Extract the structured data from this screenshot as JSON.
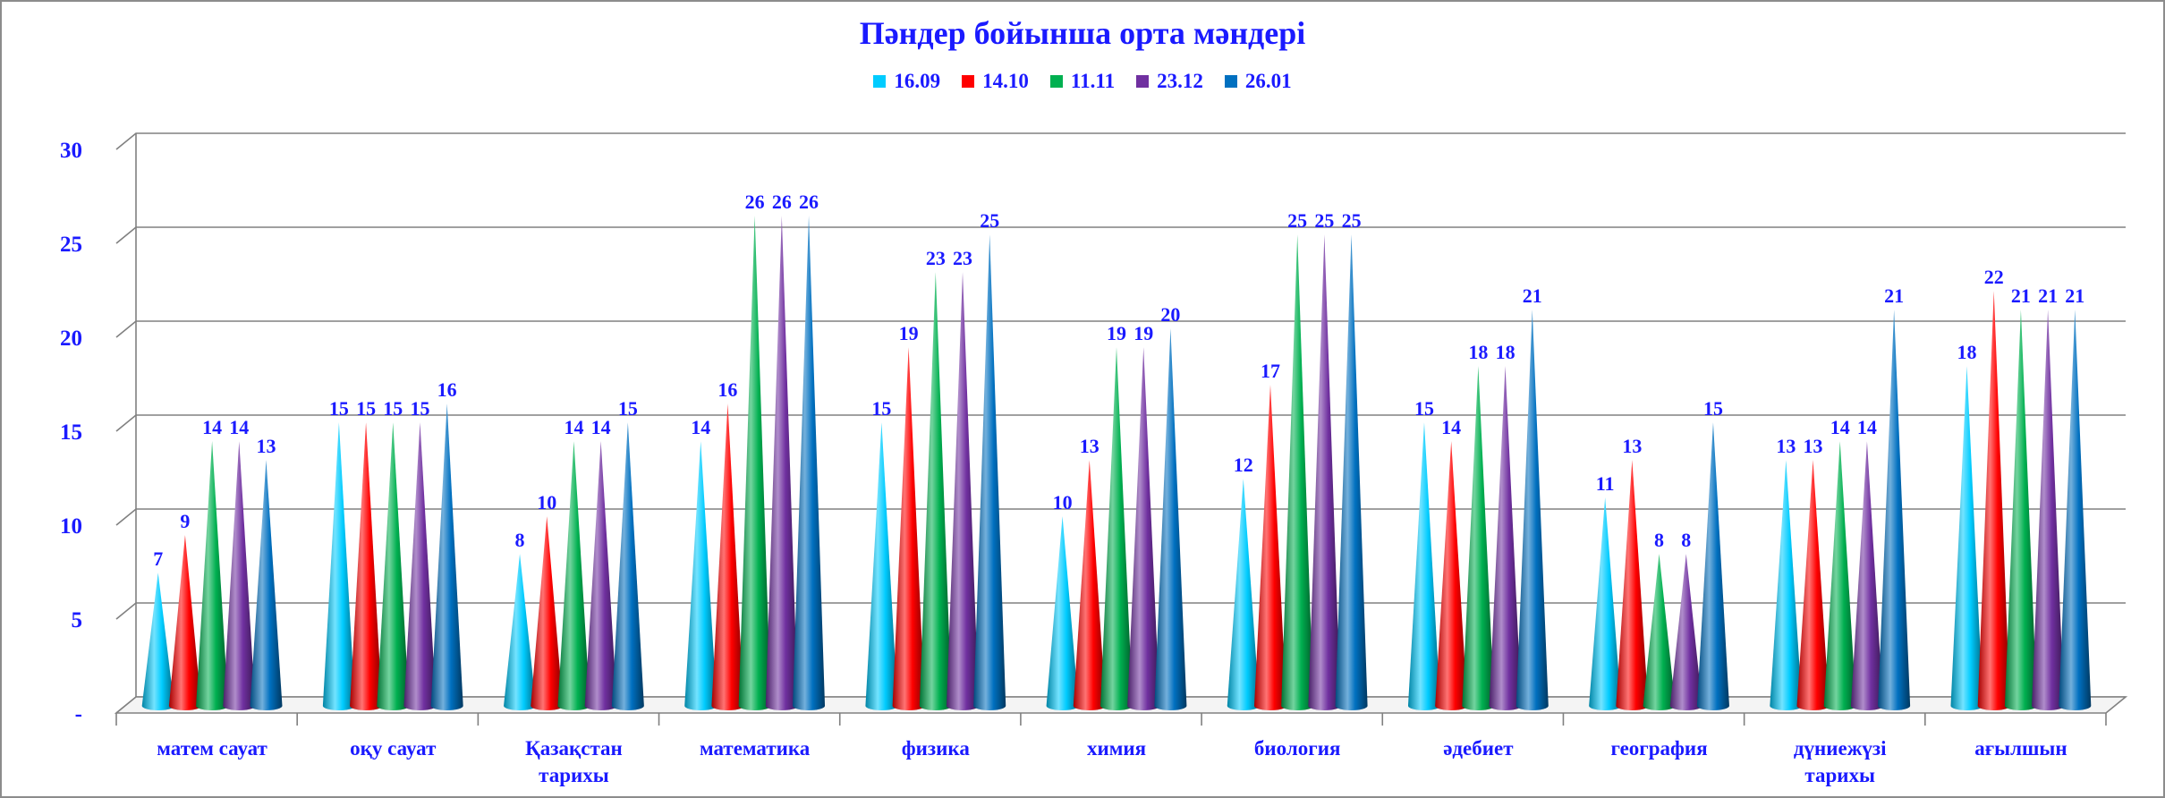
{
  "chart_data": {
    "type": "bar",
    "title": "Пәндер бойынша орта мәндері",
    "xlabel": "",
    "ylabel": "",
    "ylim": [
      0,
      30
    ],
    "yticks": [
      {
        "value": 0,
        "label": "-"
      },
      {
        "value": 5,
        "label": "5"
      },
      {
        "value": 10,
        "label": "10"
      },
      {
        "value": 15,
        "label": "15"
      },
      {
        "value": 20,
        "label": "20"
      },
      {
        "value": 25,
        "label": "25"
      },
      {
        "value": 30,
        "label": "30"
      }
    ],
    "grid": true,
    "legend_position": "top-center",
    "categories": [
      [
        "матем",
        "сауат"
      ],
      [
        "оқу сауат"
      ],
      [
        "Қазақстан",
        "тарихы"
      ],
      [
        "математика"
      ],
      [
        "физика"
      ],
      [
        "химия"
      ],
      [
        "биология"
      ],
      [
        "әдебиет"
      ],
      [
        "география"
      ],
      [
        "дүниежүзі",
        "тарихы"
      ],
      [
        "ағылшын"
      ]
    ],
    "series": [
      {
        "name": "16.09",
        "color": "#00ccff",
        "values": [
          7,
          15,
          8,
          14,
          15,
          10,
          12,
          15,
          11,
          13,
          18
        ]
      },
      {
        "name": "14.10",
        "color": "#ff0000",
        "values": [
          9,
          15,
          10,
          16,
          19,
          13,
          17,
          14,
          13,
          13,
          22
        ]
      },
      {
        "name": "11.11",
        "color": "#00b050",
        "values": [
          14,
          15,
          14,
          26,
          23,
          19,
          25,
          18,
          8,
          14,
          21
        ]
      },
      {
        "name": "23.12",
        "color": "#7030a0",
        "values": [
          14,
          15,
          14,
          26,
          23,
          19,
          25,
          18,
          8,
          14,
          21
        ]
      },
      {
        "name": "26.01",
        "color": "#0070c0",
        "values": [
          13,
          16,
          15,
          26,
          25,
          20,
          25,
          21,
          15,
          21,
          21
        ]
      }
    ]
  }
}
